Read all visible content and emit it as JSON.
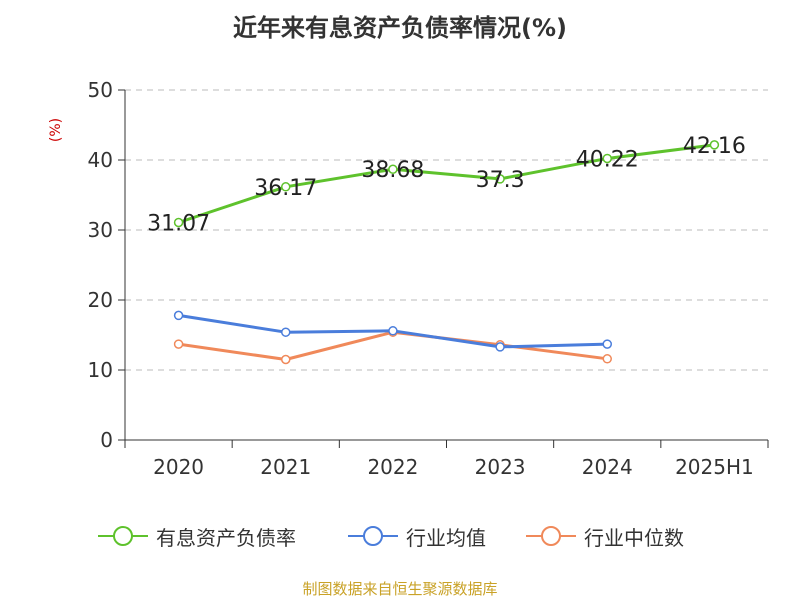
{
  "chart_data": {
    "type": "line",
    "title": "近年来有息资产负债率情况(%)",
    "ylabel": "(%)",
    "categories": [
      "2020",
      "2021",
      "2022",
      "2023",
      "2024",
      "2025H1"
    ],
    "ylim": [
      0,
      50
    ],
    "yticks": [
      0,
      10,
      20,
      30,
      40,
      50
    ],
    "grid": true,
    "legend_position": "bottom",
    "series": [
      {
        "name": "有息资产负债率",
        "color": "#5ec22c",
        "values": [
          31.07,
          36.17,
          38.68,
          37.3,
          40.22,
          42.16
        ],
        "labels": [
          "31.07",
          "36.17",
          "38.68",
          "37.3",
          "40.22",
          "42.16"
        ]
      },
      {
        "name": "行业均值",
        "color": "#4a7ddb",
        "values": [
          17.8,
          15.4,
          15.6,
          13.3,
          13.7,
          null
        ]
      },
      {
        "name": "行业中位数",
        "color": "#f0895a",
        "values": [
          13.7,
          11.5,
          15.4,
          13.6,
          11.6,
          null
        ]
      }
    ]
  },
  "footer": "制图数据来自恒生聚源数据库"
}
